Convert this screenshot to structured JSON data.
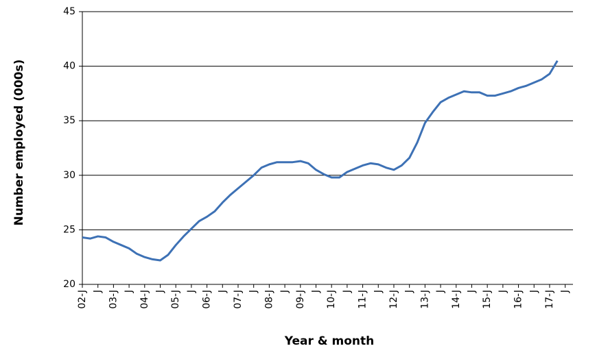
{
  "chart_data": {
    "type": "line",
    "x_label": "Year & month",
    "y_label": "Number employed (000s)",
    "categories": [
      "02-J",
      null,
      "J",
      null,
      "03-J",
      null,
      "J",
      null,
      "04-J",
      null,
      "J",
      null,
      "05-J",
      null,
      "J",
      null,
      "06-J",
      null,
      "J",
      null,
      "07-J",
      null,
      "J",
      null,
      "08-J",
      null,
      "J",
      null,
      "09-J",
      null,
      "J",
      null,
      "10-J",
      null,
      "J",
      null,
      "11-J",
      null,
      "J",
      null,
      "12-J",
      null,
      "J",
      null,
      "13-J",
      null,
      "J",
      null,
      "14-J",
      null,
      "J",
      null,
      "15-J",
      null,
      "J",
      null,
      "16-J",
      null,
      "J",
      null,
      "17-J",
      null,
      "J",
      null
    ],
    "series": [
      {
        "name": "Number employed",
        "color": "#3d71b5",
        "values": [
          24.3,
          24.2,
          24.4,
          24.3,
          23.9,
          23.6,
          23.3,
          22.8,
          22.5,
          22.3,
          22.2,
          22.7,
          23.6,
          24.4,
          25.1,
          25.8,
          26.2,
          26.7,
          27.5,
          28.2,
          28.8,
          29.4,
          30.0,
          30.7,
          31.0,
          31.2,
          31.2,
          31.2,
          31.3,
          31.1,
          30.5,
          30.1,
          29.8,
          29.8,
          30.3,
          30.6,
          30.9,
          31.1,
          31.0,
          30.7,
          30.5,
          30.9,
          31.6,
          33.0,
          34.8,
          35.8,
          36.7,
          37.1,
          37.4,
          37.7,
          37.6,
          37.6,
          37.3,
          37.3,
          37.5,
          37.7,
          38.0,
          38.2,
          38.5,
          38.8,
          39.3,
          40.5,
          null,
          null
        ]
      }
    ],
    "ylim": [
      20,
      45
    ],
    "yticks": [
      20,
      25,
      30,
      35,
      40,
      45
    ],
    "grid": true
  }
}
